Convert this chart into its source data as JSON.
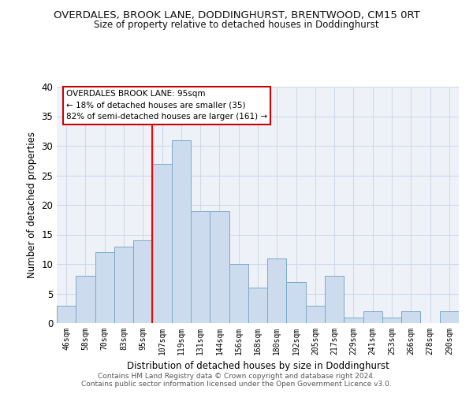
{
  "title": "OVERDALES, BROOK LANE, DODDINGHURST, BRENTWOOD, CM15 0RT",
  "subtitle": "Size of property relative to detached houses in Doddinghurst",
  "xlabel": "Distribution of detached houses by size in Doddinghurst",
  "ylabel": "Number of detached properties",
  "bin_labels": [
    "46sqm",
    "58sqm",
    "70sqm",
    "83sqm",
    "95sqm",
    "107sqm",
    "119sqm",
    "131sqm",
    "144sqm",
    "156sqm",
    "168sqm",
    "180sqm",
    "192sqm",
    "205sqm",
    "217sqm",
    "229sqm",
    "241sqm",
    "253sqm",
    "266sqm",
    "278sqm",
    "290sqm"
  ],
  "bar_heights": [
    3,
    8,
    12,
    13,
    14,
    27,
    31,
    19,
    19,
    10,
    6,
    11,
    7,
    3,
    8,
    1,
    2,
    1,
    2,
    0,
    2
  ],
  "bar_color": "#ccdcee",
  "bar_edgecolor": "#7aaac8",
  "redline_bin_index": 4,
  "annotation_title": "OVERDALES BROOK LANE: 95sqm",
  "annotation_line1": "← 18% of detached houses are smaller (35)",
  "annotation_line2": "82% of semi-detached houses are larger (161) →",
  "ylim": [
    0,
    40
  ],
  "yticks": [
    0,
    5,
    10,
    15,
    20,
    25,
    30,
    35,
    40
  ],
  "grid_color": "#d0d8e8",
  "footer1": "Contains HM Land Registry data © Crown copyright and database right 2024.",
  "footer2": "Contains public sector information licensed under the Open Government Licence v3.0."
}
